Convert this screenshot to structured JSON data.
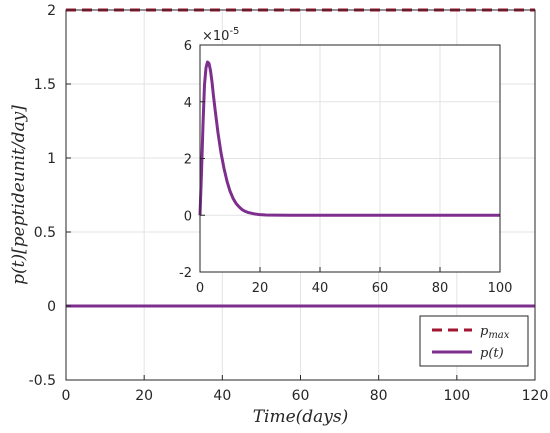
{
  "chart_data": [
    {
      "type": "line",
      "title": "",
      "xlabel": "Time(days)",
      "ylabel": "p(t)[peptideunit/day]",
      "xlim": [
        0,
        120
      ],
      "ylim": [
        -0.5,
        2
      ],
      "xticks": [
        0,
        20,
        40,
        60,
        80,
        100,
        120
      ],
      "yticks": [
        -0.5,
        0,
        0.5,
        1,
        1.5,
        2
      ],
      "xtick_labels": [
        "0",
        "20",
        "40",
        "60",
        "80",
        "100",
        "120"
      ],
      "ytick_labels": [
        "-0.5",
        "0",
        "0.5",
        "1",
        "1.5",
        "2"
      ],
      "grid": true,
      "legend_position": "bottom-right",
      "series": [
        {
          "name": "p_max",
          "legend_main": "p",
          "legend_sub": "max",
          "style": "dashed",
          "color": "#a2142f",
          "x": [
            0,
            120
          ],
          "y": [
            2,
            2
          ]
        },
        {
          "name": "p(t)",
          "legend_main": "p(t)",
          "legend_sub": "",
          "style": "solid",
          "color": "#7e2f8e",
          "x": [
            0,
            120
          ],
          "y": [
            0,
            0
          ]
        }
      ]
    },
    {
      "type": "line",
      "title": "",
      "xlabel": "",
      "ylabel": "",
      "xlim": [
        0,
        100
      ],
      "ylim": [
        -2,
        6
      ],
      "yscale_label_base": "×10",
      "yscale_label_exp": "-5",
      "xticks": [
        0,
        20,
        40,
        60,
        80,
        100
      ],
      "yticks": [
        -2,
        0,
        2,
        4,
        6
      ],
      "xtick_labels": [
        "0",
        "20",
        "40",
        "60",
        "80",
        "100"
      ],
      "ytick_labels": [
        "-2",
        "0",
        "2",
        "4",
        "6"
      ],
      "grid": true,
      "series": [
        {
          "name": "",
          "style": "solid",
          "color": "#7e2f8e",
          "x": [
            0,
            0.5,
            1,
            1.5,
            2,
            2.5,
            3,
            3.5,
            4,
            4.5,
            5,
            6,
            7,
            8,
            9,
            10,
            11,
            12,
            13,
            14,
            15,
            16,
            18,
            20,
            22,
            25,
            30,
            40,
            60,
            80,
            100
          ],
          "y": [
            0,
            1.5,
            3.2,
            4.6,
            5.2,
            5.4,
            5.35,
            5.1,
            4.7,
            4.2,
            3.75,
            2.9,
            2.2,
            1.65,
            1.2,
            0.85,
            0.6,
            0.42,
            0.3,
            0.2,
            0.14,
            0.1,
            0.05,
            0.02,
            0.01,
            0.005,
            0,
            0,
            0,
            0,
            0
          ]
        }
      ]
    }
  ]
}
